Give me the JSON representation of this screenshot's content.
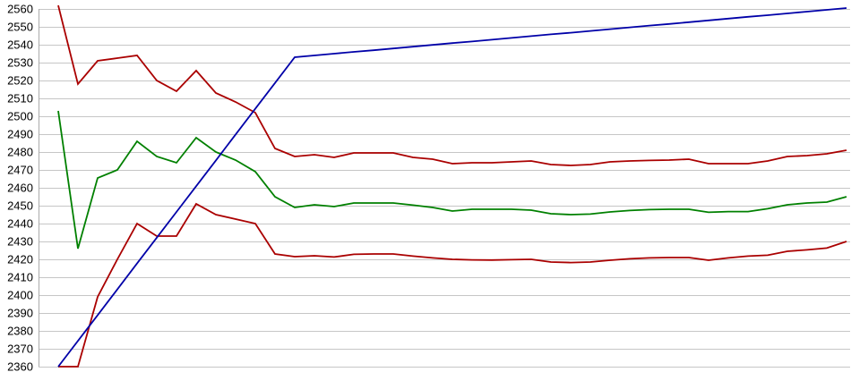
{
  "chart_data": {
    "type": "line",
    "title": "",
    "xlabel": "",
    "ylabel": "",
    "grid": true,
    "legend": "none",
    "x_axis": {
      "labels_visible": false,
      "n_points": 41
    },
    "y_axis": {
      "min": 2360,
      "max": 2560,
      "tick_step": 10,
      "tick_labels": [
        "2560",
        "2550",
        "2540",
        "2530",
        "2520",
        "2510",
        "2500",
        "2490",
        "2480",
        "2470",
        "2460",
        "2450",
        "2440",
        "2430",
        "2420",
        "2410",
        "2400",
        "2390",
        "2380",
        "2370",
        "2360"
      ]
    },
    "colors": {
      "red": "#AA0000",
      "green": "#008000",
      "blue": "#0000A8",
      "gridline": "#C6C6C6",
      "axis": "#ABABAB",
      "text": "#000000",
      "background": "#FFFFFF"
    },
    "series": [
      {
        "name": "upper-red",
        "color": "#AA0000",
        "values": [
          2562,
          2518,
          2531,
          2532.5,
          2534,
          2520,
          2514,
          2525.5,
          2513,
          2508,
          2502,
          2482,
          2477.5,
          2478.5,
          2477,
          2479.5,
          2479.5,
          2479.5,
          2477,
          2476,
          2473.5,
          2474,
          2474,
          2474.5,
          2475,
          2473,
          2472.5,
          2473,
          2474.5,
          2475,
          2475.3,
          2475.5,
          2476,
          2473.5,
          2473.5,
          2473.5,
          2475,
          2477.5,
          2478,
          2479,
          2481
        ]
      },
      {
        "name": "green",
        "color": "#008000",
        "values": [
          2503,
          2426,
          2465.5,
          2470,
          2486,
          2477.5,
          2474,
          2488,
          2480,
          2475.5,
          2469,
          2455,
          2449,
          2450.5,
          2449.5,
          2451.5,
          2451.5,
          2451.5,
          2450.3,
          2449,
          2447,
          2448,
          2448,
          2448,
          2447.5,
          2445.5,
          2445,
          2445.3,
          2446.5,
          2447.3,
          2447.8,
          2448,
          2448,
          2446.3,
          2446.7,
          2446.7,
          2448.3,
          2450.5,
          2451.5,
          2452,
          2455
        ]
      },
      {
        "name": "lower-red",
        "color": "#AA0000",
        "values": [
          2360,
          2360,
          2399,
          2420,
          2440,
          2433,
          2433,
          2451,
          2445,
          2442.5,
          2440,
          2423,
          2421.5,
          2422,
          2421.3,
          2422.8,
          2423,
          2423,
          2421.8,
          2420.8,
          2420,
          2419.7,
          2419.6,
          2419.8,
          2420,
          2418.5,
          2418.2,
          2418.5,
          2419.5,
          2420.3,
          2420.8,
          2421,
          2421,
          2419.5,
          2420.8,
          2421.8,
          2422.3,
          2424.5,
          2425.3,
          2426.3,
          2430
        ]
      },
      {
        "name": "blue",
        "color": "#0000A8",
        "values": [
          2360,
          2374.4,
          2388.8,
          2403.2,
          2417.7,
          2432.1,
          2446.5,
          2460.9,
          2475.3,
          2489.8,
          2504.2,
          2518.6,
          2533,
          2534,
          2535,
          2536,
          2536.9,
          2537.9,
          2538.9,
          2539.9,
          2540.9,
          2541.8,
          2542.8,
          2543.8,
          2544.8,
          2545.8,
          2546.7,
          2547.7,
          2548.7,
          2549.7,
          2550.7,
          2551.6,
          2552.6,
          2553.6,
          2554.6,
          2555.6,
          2556.5,
          2557.5,
          2558.5,
          2559.5,
          2560.5
        ]
      }
    ]
  }
}
